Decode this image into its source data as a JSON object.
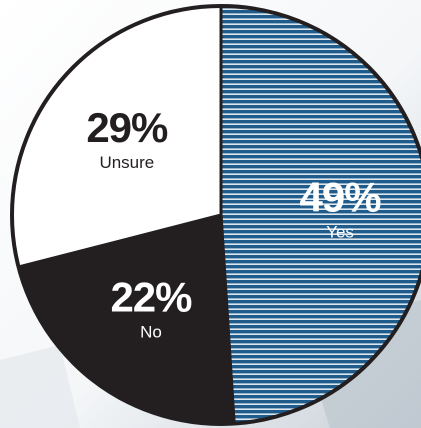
{
  "chart_data": {
    "type": "pie",
    "title": "",
    "slices": [
      {
        "label": "Yes",
        "value": 49,
        "value_label": "49%",
        "color": "#1f5c8c",
        "pattern": "horizontal-stripes",
        "text_color": "#ffffff"
      },
      {
        "label": "No",
        "value": 22,
        "value_label": "22%",
        "color": "#231f20",
        "pattern": "solid",
        "text_color": "#ffffff"
      },
      {
        "label": "Unsure",
        "value": 29,
        "value_label": "29%",
        "color": "#ffffff",
        "pattern": "solid",
        "text_color": "#231f20"
      }
    ],
    "start": "top",
    "direction": "clockwise",
    "outline_color": "#231f20"
  }
}
